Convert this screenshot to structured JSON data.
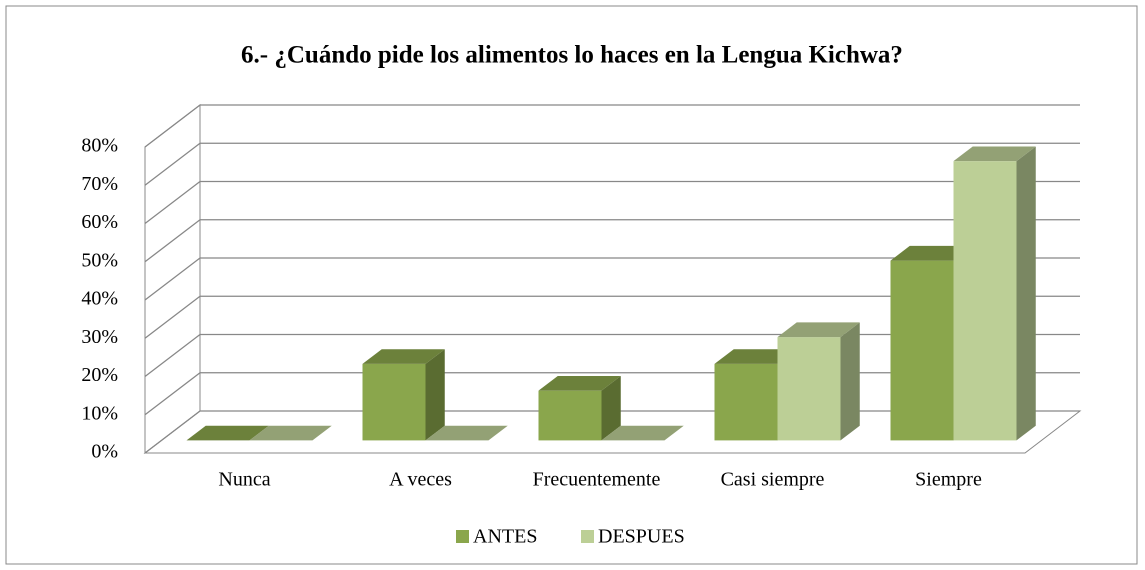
{
  "chart_data": {
    "type": "bar3d",
    "title": "6.- ¿Cuándo  pide los alimentos lo haces  en la Lengua Kichwa?",
    "categories": [
      "Nunca",
      "A veces",
      "Frecuentemente",
      "Casi siempre",
      "Siempre"
    ],
    "series": [
      {
        "name": "ANTES",
        "color": "#8aa64c",
        "values": [
          0,
          20,
          13,
          20,
          47
        ]
      },
      {
        "name": "DESPUES",
        "color": "#bccf96",
        "values": [
          0,
          0,
          0,
          27,
          73
        ]
      }
    ],
    "ylim": [
      0,
      80
    ],
    "yticks": [
      {
        "value": 0,
        "label": "0%"
      },
      {
        "value": 10,
        "label": "10%"
      },
      {
        "value": 20,
        "label": "20%"
      },
      {
        "value": 30,
        "label": "30%"
      },
      {
        "value": 40,
        "label": "40%"
      },
      {
        "value": 50,
        "label": "50%"
      },
      {
        "value": 60,
        "label": "60%"
      },
      {
        "value": 70,
        "label": "70%"
      },
      {
        "value": 80,
        "label": "80%"
      }
    ],
    "grid": true,
    "legend": "bottom"
  }
}
